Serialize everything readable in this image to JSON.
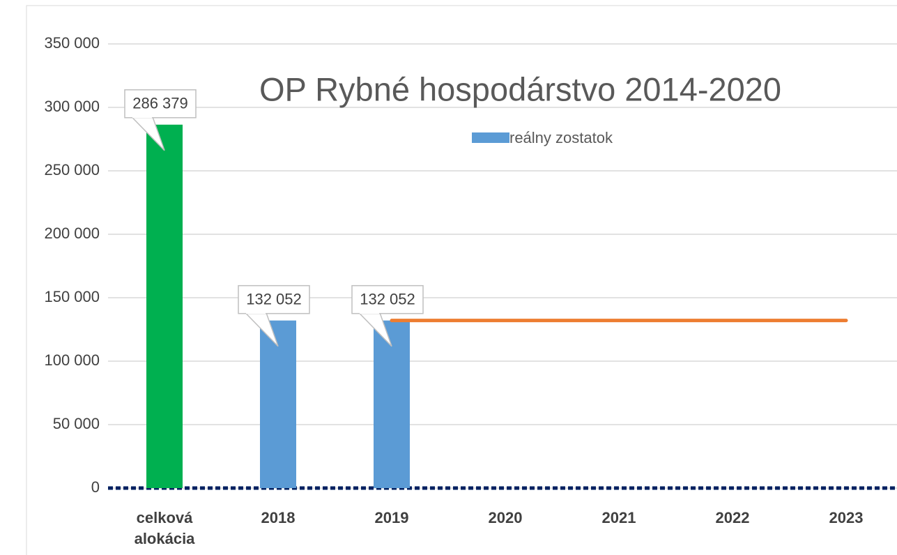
{
  "chart_data": {
    "type": "bar",
    "title": "OP Rybné hospodárstvo 2014-2020",
    "categories": [
      "celková alokácia",
      "2018",
      "2019",
      "2020",
      "2021",
      "2022",
      "2023"
    ],
    "series": [
      {
        "name": "reálny zostatok",
        "type": "bar",
        "color": "#5b9bd5",
        "colors": [
          "#00b050",
          "#5b9bd5",
          "#5b9bd5",
          "#5b9bd5",
          "#5b9bd5",
          "#5b9bd5",
          "#5b9bd5"
        ],
        "values": [
          286379,
          132052,
          132052,
          null,
          null,
          null,
          null
        ],
        "value_labels": [
          "286 379",
          "132 052",
          "132 052",
          null,
          null,
          null,
          null
        ]
      },
      {
        "type": "line",
        "color": "#ed7d31",
        "values": [
          null,
          null,
          132052,
          132052,
          132052,
          132052,
          132052
        ]
      }
    ],
    "ylim": [
      0,
      350000
    ],
    "yticks": [
      0,
      {
        "value": 50000,
        "label": "50 000"
      },
      {
        "value": 100000,
        "label": "100 000"
      },
      {
        "value": 150000,
        "label": "150 000"
      },
      {
        "value": 200000,
        "label": "200 000"
      },
      {
        "value": 250000,
        "label": "250 000"
      },
      {
        "value": 300000,
        "label": "300 000"
      },
      {
        "value": 350000,
        "label": "350 000"
      }
    ],
    "grid": true
  }
}
